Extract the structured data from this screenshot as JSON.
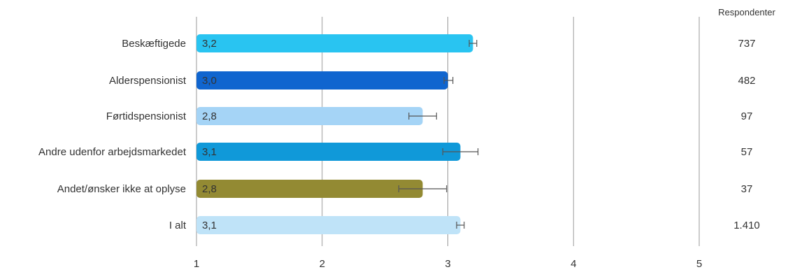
{
  "chart_data": {
    "type": "bar",
    "orientation": "horizontal",
    "categories": [
      "Beskæftigede",
      "Alderspensionist",
      "Førtidspensionist",
      "Andre udenfor arbejdsmarkedet",
      "Andet/ønsker ikke at oplyse",
      "I alt"
    ],
    "values": [
      3.2,
      3.0,
      2.8,
      3.1,
      2.8,
      3.1
    ],
    "value_labels": [
      "3,2",
      "3,0",
      "2,8",
      "3,1",
      "2,8",
      "3,1"
    ],
    "error_bars": [
      {
        "low": 3.17,
        "high": 3.23
      },
      {
        "low": 2.97,
        "high": 3.04
      },
      {
        "low": 2.69,
        "high": 2.91
      },
      {
        "low": 2.96,
        "high": 3.24
      },
      {
        "low": 2.61,
        "high": 2.99
      },
      {
        "low": 3.07,
        "high": 3.13
      }
    ],
    "colors": [
      "#29c4f1",
      "#1065cf",
      "#a5d4f6",
      "#1099d9",
      "#938a33",
      "#bfe3f8"
    ],
    "xlim": [
      1,
      5
    ],
    "x_ticks": [
      "1",
      "2",
      "3",
      "4",
      "5"
    ],
    "grid": true,
    "respondents_header": "Respondenter",
    "respondents": [
      "737",
      "482",
      "97",
      "57",
      "37",
      "1.410"
    ]
  }
}
